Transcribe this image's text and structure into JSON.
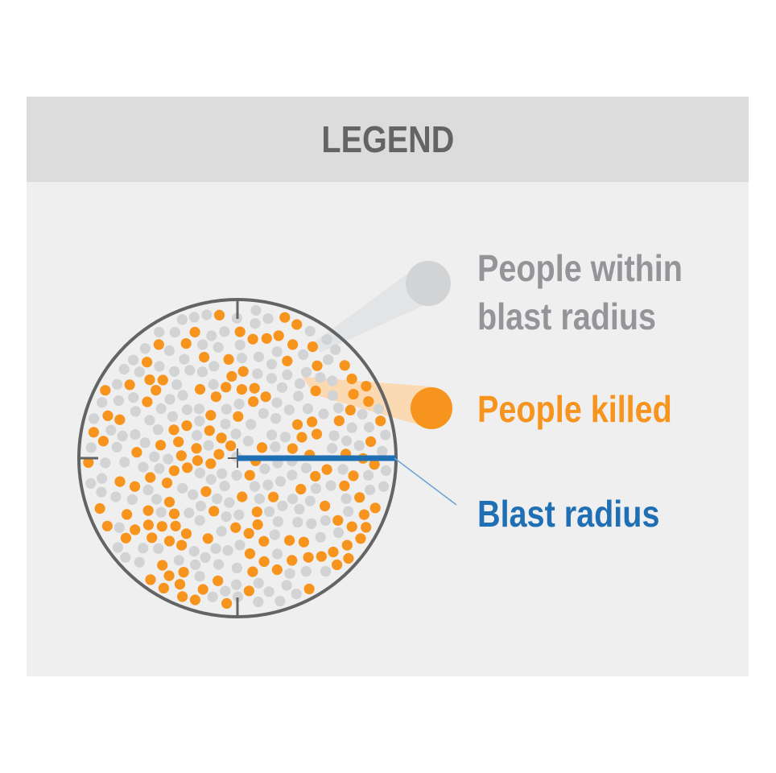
{
  "legend": {
    "title": "LEGEND",
    "items": [
      {
        "label_line1": "People within",
        "label_line2": "blast radius",
        "color": "#c8c9ca",
        "text_color": "#939598"
      },
      {
        "label": "People killed",
        "color": "#f7941d"
      },
      {
        "label": "Blast radius",
        "color": "#1f6fb5"
      }
    ]
  },
  "colors": {
    "panel_background": "#efefef",
    "header_background": "#dcdcdd",
    "circle_stroke": "#636466",
    "person_dot": "#d2d3d4",
    "killed_dot": "#f7941d",
    "blast_radius_line": "#1f6fb5",
    "title_text": "#636466"
  }
}
